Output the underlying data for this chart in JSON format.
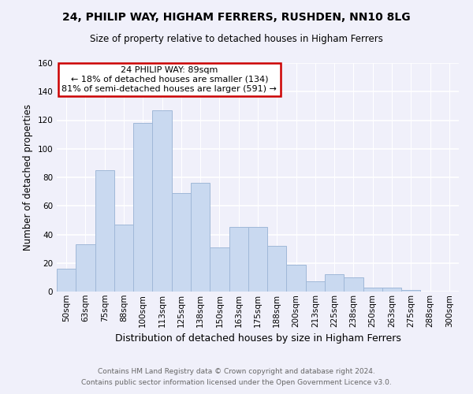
{
  "title": "24, PHILIP WAY, HIGHAM FERRERS, RUSHDEN, NN10 8LG",
  "subtitle": "Size of property relative to detached houses in Higham Ferrers",
  "xlabel": "Distribution of detached houses by size in Higham Ferrers",
  "ylabel": "Number of detached properties",
  "footnote1": "Contains HM Land Registry data © Crown copyright and database right 2024.",
  "footnote2": "Contains public sector information licensed under the Open Government Licence v3.0.",
  "bin_labels": [
    "50sqm",
    "63sqm",
    "75sqm",
    "88sqm",
    "100sqm",
    "113sqm",
    "125sqm",
    "138sqm",
    "150sqm",
    "163sqm",
    "175sqm",
    "188sqm",
    "200sqm",
    "213sqm",
    "225sqm",
    "238sqm",
    "250sqm",
    "263sqm",
    "275sqm",
    "288sqm",
    "300sqm"
  ],
  "bar_values": [
    16,
    33,
    85,
    47,
    118,
    127,
    69,
    76,
    31,
    45,
    45,
    32,
    19,
    7,
    12,
    10,
    3,
    3,
    1,
    0,
    0
  ],
  "bar_color": "#c9d9f0",
  "bar_edge_color": "#a0b8d8",
  "ylim": [
    0,
    160
  ],
  "yticks": [
    0,
    20,
    40,
    60,
    80,
    100,
    120,
    140,
    160
  ],
  "annotation_title": "24 PHILIP WAY: 89sqm",
  "annotation_line1": "← 18% of detached houses are smaller (134)",
  "annotation_line2": "81% of semi-detached houses are larger (591) →",
  "annotation_box_color": "#ffffff",
  "annotation_box_edge": "#cc0000",
  "background_color": "#f0f0fa",
  "title_fontsize": 10,
  "subtitle_fontsize": 8.5,
  "xlabel_fontsize": 9,
  "ylabel_fontsize": 8.5,
  "tick_fontsize": 7.5,
  "footnote_fontsize": 6.5,
  "footnote_color": "#666666"
}
